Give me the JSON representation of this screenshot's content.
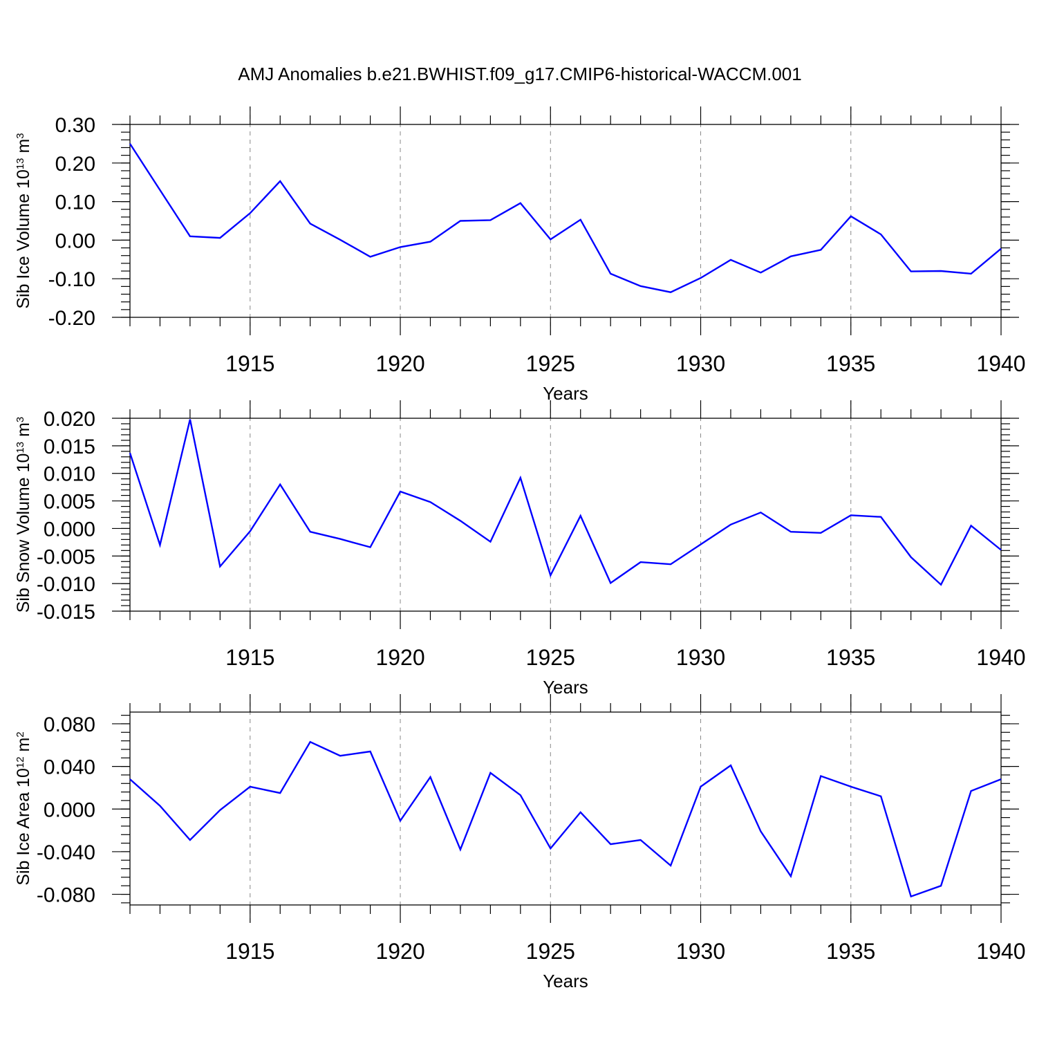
{
  "title": "AMJ Anomalies b.e21.BWHIST.f09_g17.CMIP6-historical-WACCM.001",
  "line_color": "#0000ff",
  "chart_data": [
    {
      "type": "line",
      "ylabel": "Sib Ice Volume 10",
      "ylabel_exp": "13",
      "ylabel_unit": " m",
      "ylabel_unit_exp": "3",
      "xlabel": "Years",
      "xlim": [
        1911,
        1940
      ],
      "ylim": [
        -0.2,
        0.3
      ],
      "yticks": [
        -0.2,
        -0.1,
        0.0,
        0.1,
        0.2,
        0.3
      ],
      "ytick_labels": [
        "-0.20",
        "-0.10",
        "0.00",
        "0.10",
        "0.20",
        "0.30"
      ],
      "xticks": [
        1915,
        1920,
        1925,
        1930,
        1935,
        1940
      ],
      "xtick_labels": [
        "1915",
        "1920",
        "1925",
        "1930",
        "1935",
        "1940"
      ],
      "x": [
        1911,
        1912,
        1913,
        1914,
        1915,
        1916,
        1917,
        1918,
        1919,
        1920,
        1921,
        1922,
        1923,
        1924,
        1925,
        1926,
        1927,
        1928,
        1929,
        1930,
        1931,
        1932,
        1933,
        1934,
        1935,
        1936,
        1937,
        1938,
        1939,
        1940
      ],
      "values": [
        0.25,
        0.13,
        0.01,
        0.006,
        0.07,
        0.153,
        0.043,
        0.001,
        -0.043,
        -0.018,
        -0.004,
        0.05,
        0.052,
        0.096,
        0.002,
        0.053,
        -0.087,
        -0.119,
        -0.135,
        -0.098,
        -0.051,
        -0.084,
        -0.042,
        -0.025,
        0.062,
        0.015,
        -0.081,
        -0.08,
        -0.087,
        -0.022
      ]
    },
    {
      "type": "line",
      "ylabel": "Sib Snow Volume 10",
      "ylabel_exp": "13",
      "ylabel_unit": " m",
      "ylabel_unit_exp": "3",
      "xlabel": "Years",
      "xlim": [
        1911,
        1940
      ],
      "ylim": [
        -0.015,
        0.02
      ],
      "yticks": [
        -0.015,
        -0.01,
        -0.005,
        0.0,
        0.005,
        0.01,
        0.015,
        0.02
      ],
      "ytick_labels": [
        "-0.015",
        "-0.010",
        "-0.005",
        "0.000",
        "0.005",
        "0.010",
        "0.015",
        "0.020"
      ],
      "xticks": [
        1915,
        1920,
        1925,
        1930,
        1935,
        1940
      ],
      "xtick_labels": [
        "1915",
        "1920",
        "1925",
        "1930",
        "1935",
        "1940"
      ],
      "x": [
        1911,
        1912,
        1913,
        1914,
        1915,
        1916,
        1917,
        1918,
        1919,
        1920,
        1921,
        1922,
        1923,
        1924,
        1925,
        1926,
        1927,
        1928,
        1929,
        1930,
        1931,
        1932,
        1933,
        1934,
        1935,
        1936,
        1937,
        1938,
        1939,
        1940
      ],
      "values": [
        0.0137,
        -0.003,
        0.0198,
        -0.0069,
        -0.0005,
        0.008,
        -0.0006,
        -0.0019,
        -0.0034,
        0.0067,
        0.0048,
        0.0014,
        -0.0024,
        0.0092,
        -0.0085,
        0.0023,
        -0.0099,
        -0.0061,
        -0.0065,
        -0.0029,
        0.0007,
        0.0029,
        -0.0006,
        -0.0008,
        0.0024,
        0.0021,
        -0.0052,
        -0.0102,
        0.0005,
        -0.0039
      ]
    },
    {
      "type": "line",
      "ylabel": "Sib Ice Area 10",
      "ylabel_exp": "12",
      "ylabel_unit": " m",
      "ylabel_unit_exp": "2",
      "xlabel": "Years",
      "xlim": [
        1911,
        1940
      ],
      "ylim": [
        -0.09,
        0.091
      ],
      "yticks": [
        -0.08,
        -0.04,
        0.0,
        0.04,
        0.08
      ],
      "ytick_labels": [
        "-0.080",
        "-0.040",
        "0.000",
        "0.040",
        "0.080"
      ],
      "xticks": [
        1915,
        1920,
        1925,
        1930,
        1935,
        1940
      ],
      "xtick_labels": [
        "1915",
        "1920",
        "1925",
        "1930",
        "1935",
        "1940"
      ],
      "x": [
        1911,
        1912,
        1913,
        1914,
        1915,
        1916,
        1917,
        1918,
        1919,
        1920,
        1921,
        1922,
        1923,
        1924,
        1925,
        1926,
        1927,
        1928,
        1929,
        1930,
        1931,
        1932,
        1933,
        1934,
        1935,
        1936,
        1937,
        1938,
        1939,
        1940
      ],
      "values": [
        0.028,
        0.003,
        -0.029,
        -0.001,
        0.021,
        0.015,
        0.063,
        0.05,
        0.054,
        -0.011,
        0.03,
        -0.038,
        0.034,
        0.013,
        -0.037,
        -0.003,
        -0.033,
        -0.029,
        -0.053,
        0.021,
        0.041,
        -0.021,
        -0.063,
        0.031,
        0.021,
        0.012,
        -0.082,
        -0.072,
        0.017,
        0.028
      ]
    }
  ]
}
